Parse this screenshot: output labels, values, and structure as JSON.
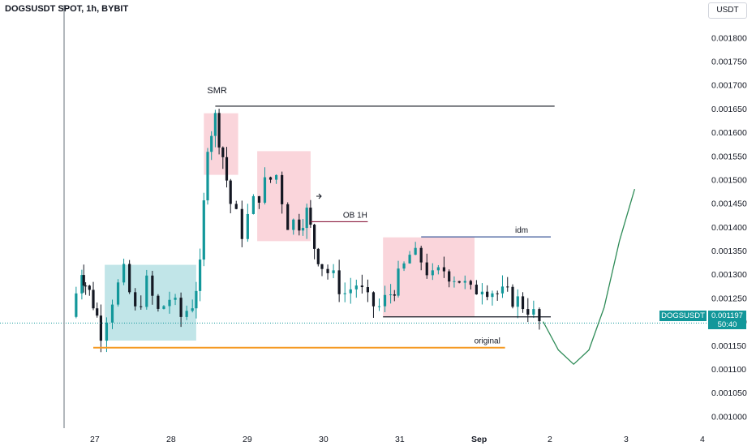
{
  "header": {
    "symbol_title": "DOGSUSDT SPOT, 1h, BYBIT",
    "currency": "USDT"
  },
  "price_tag": {
    "symbol": "DOGSUSDT",
    "price": "0.001197",
    "countdown": "50:40"
  },
  "colors": {
    "bull": "#12979a",
    "bear": "#131722",
    "supply_zone": "#f7b9c3",
    "demand_zone": "#9fd7db",
    "level_orange": "#f59a23",
    "level_maroon": "#8c1d40",
    "level_blue": "#3f5a9a",
    "curve": "#2e8b57"
  },
  "chart_data": {
    "type": "line",
    "y_axis": {
      "ticks": [
        "0.001000",
        "0.001050",
        "0.001100",
        "0.001150",
        "0.001200",
        "0.001250",
        "0.001300",
        "0.001350",
        "0.001400",
        "0.001450",
        "0.001500",
        "0.001550",
        "0.001600",
        "0.001650",
        "0.001700",
        "0.001750",
        "0.001800"
      ],
      "range": [
        0.000975,
        0.001845
      ]
    },
    "x_axis": {
      "ticks": [
        "27",
        "28",
        "29",
        "30",
        "31",
        "Sep",
        "2",
        "3",
        "4"
      ],
      "range": [
        26.4,
        4.95
      ]
    },
    "series": [
      {
        "values_note": "",
        "points": [
          [
            26.7,
            0.00121
          ],
          [
            26.85,
            0.00131
          ],
          [
            26.9,
            0.00128
          ],
          [
            27.0,
            0.00124
          ],
          [
            27.1,
            0.00118
          ],
          [
            27.25,
            0.00125
          ],
          [
            27.4,
            0.0013
          ],
          [
            27.55,
            0.00122
          ],
          [
            27.7,
            0.00128
          ],
          [
            27.85,
            0.00122
          ],
          [
            28.0,
            0.00125
          ],
          [
            28.15,
            0.00121
          ],
          [
            28.3,
            0.00124
          ],
          [
            28.4,
            0.00131
          ],
          [
            28.5,
            0.00158
          ],
          [
            28.6,
            0.00163
          ],
          [
            28.7,
            0.00155
          ],
          [
            28.8,
            0.00145
          ],
          [
            28.95,
            0.00139
          ],
          [
            29.1,
            0.00145
          ],
          [
            29.25,
            0.00149
          ],
          [
            29.4,
            0.00151
          ],
          [
            29.55,
            0.00141
          ],
          [
            29.7,
            0.00141
          ],
          [
            29.8,
            0.00143
          ],
          [
            29.9,
            0.00136
          ],
          [
            30.0,
            0.00132
          ],
          [
            30.15,
            0.00129
          ],
          [
            30.3,
            0.00126
          ],
          [
            30.45,
            0.00128
          ],
          [
            30.6,
            0.00124
          ],
          [
            30.75,
            0.00123
          ],
          [
            30.9,
            0.00126
          ],
          [
            31.0,
            0.00129
          ],
          [
            31.15,
            0.00134
          ],
          [
            31.3,
            0.00133
          ],
          [
            31.45,
            0.00129
          ],
          [
            31.6,
            0.00131
          ],
          [
            31.8,
            0.00129
          ],
          [
            31.95,
            0.00126
          ],
          [
            32.1,
            0.00128
          ],
          [
            32.3,
            0.00126
          ],
          [
            32.5,
            0.00125
          ],
          [
            32.7,
            0.00123
          ],
          [
            32.85,
            0.001197
          ]
        ]
      }
    ],
    "zones": [
      {
        "kind": "demand",
        "x": [
          27.15,
          28.35
        ],
        "y": [
          0.00116,
          0.00132
        ]
      },
      {
        "kind": "supply",
        "x": [
          28.45,
          28.9
        ],
        "y": [
          0.00151,
          0.00164
        ]
      },
      {
        "kind": "supply",
        "x": [
          29.15,
          29.85
        ],
        "y": [
          0.00137,
          0.00156
        ]
      },
      {
        "kind": "supply",
        "x": [
          30.8,
          32.0
        ],
        "y": [
          0.00121,
          0.001378
        ]
      }
    ],
    "levels": [
      {
        "label": "SMR",
        "y": 0.001655,
        "x": [
          28.6,
          33.05
        ],
        "style": "dark"
      },
      {
        "label": "OB 1H",
        "y": 0.001411,
        "x": [
          29.85,
          30.6
        ],
        "style": "maroon"
      },
      {
        "label": "idm",
        "y": 0.001379,
        "x": [
          31.3,
          33.0
        ],
        "style": "blue"
      },
      {
        "label": "original",
        "y": 0.001145,
        "x": [
          27.0,
          32.4
        ],
        "style": "orange"
      },
      {
        "label": "",
        "y": 0.00121,
        "x": [
          30.8,
          33.0
        ],
        "style": "dark"
      }
    ],
    "projection": {
      "points": [
        [
          32.9,
          0.0012
        ],
        [
          33.1,
          0.00114
        ],
        [
          33.3,
          0.00111
        ],
        [
          33.5,
          0.00114
        ],
        [
          33.7,
          0.00123
        ],
        [
          33.9,
          0.00137
        ],
        [
          34.1,
          0.00148
        ]
      ]
    },
    "current_price": 0.001197,
    "grid": false
  }
}
